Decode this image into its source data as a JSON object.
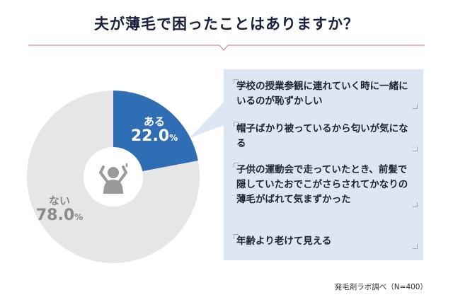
{
  "title": "夫が薄毛で困ったことはありますか？",
  "chart_data": {
    "type": "pie",
    "categories": [
      "ある",
      "ない"
    ],
    "values": [
      22.0,
      78.0
    ],
    "value_unit": "%",
    "colors": [
      "#2f6db5",
      "#e6e6e6"
    ],
    "center_icon": "distressed-person-icon"
  },
  "labels": {
    "yes": {
      "category": "ある",
      "value": "22.0",
      "unit": "%"
    },
    "no": {
      "category": "ない",
      "value": "78.0",
      "unit": "%"
    }
  },
  "comments": [
    "学校の授業参観に連れていく時に一緒にいるのが恥ずかしい",
    "帽子ばかり被っているから匂いが気になる",
    "子供の運動会で走っていたとき、前髪で隠していたおでこがさらされてかなりの薄毛がばれて気まずかった",
    "年齢より老けて見える"
  ],
  "source": "発毛剤ラボ調べ（N=400）",
  "colors": {
    "accent": "#2f6db5",
    "title": "#1c1f3e",
    "rule": "#d0869a",
    "box": "#dde7f3"
  }
}
